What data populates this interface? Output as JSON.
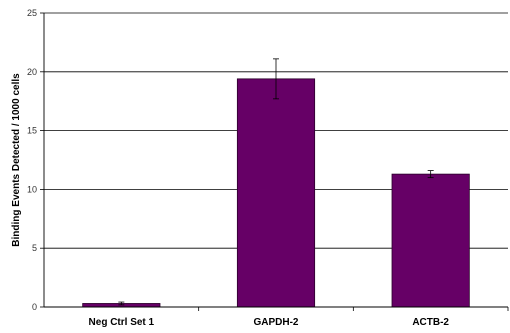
{
  "chart_data": {
    "type": "bar",
    "title": "",
    "xlabel": "",
    "ylabel": "Binding Events Detected / 1000 cells",
    "categories": [
      "Neg Ctrl Set 1",
      "GAPDH-2",
      "ACTB-2"
    ],
    "values": [
      0.3,
      19.4,
      11.3
    ],
    "errors": [
      0.12,
      1.7,
      0.3
    ],
    "ylim": [
      0,
      25
    ],
    "yticks": [
      "0",
      "5",
      "10",
      "15",
      "20",
      "25"
    ],
    "grid": true,
    "legend": "none",
    "bar_color": "#660066",
    "bar_edge_color": "#2a002a"
  }
}
